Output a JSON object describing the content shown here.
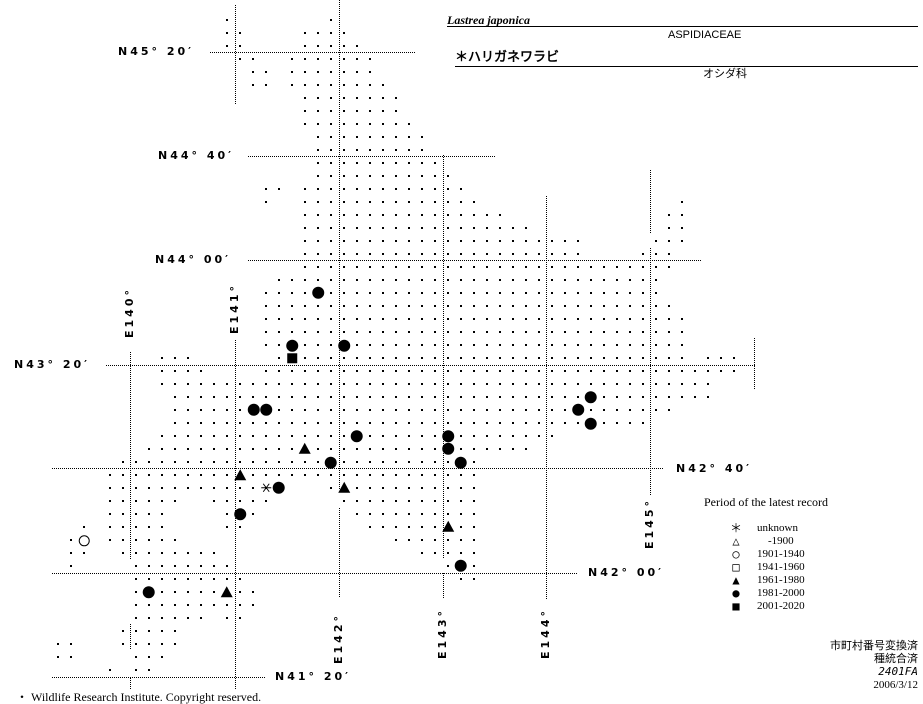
{
  "header": {
    "scientific_name": "Lastrea japonica",
    "family_latin": "ASPIDIACEAE",
    "japanese_name": "＊ハリガネワラビ",
    "family_japanese": "オシダ科"
  },
  "grid_labels": {
    "lat": [
      "N45° 20′",
      "N44° 40′",
      "N44° 00′",
      "N43° 20′",
      "N42° 40′",
      "N42° 00′",
      "N41° 20′"
    ],
    "lon": [
      "E140°",
      "E141°",
      "E142°",
      "E143°",
      "E144°",
      "E145°"
    ]
  },
  "legend": {
    "title": "Period of the latest record",
    "items": [
      {
        "symbol": "asterisk",
        "glyph": "＊",
        "label": "unknown"
      },
      {
        "symbol": "open-triangle",
        "glyph": "△",
        "label": "    -1900"
      },
      {
        "symbol": "open-circle",
        "glyph": "○",
        "label": "1901-1940"
      },
      {
        "symbol": "open-square",
        "glyph": "□",
        "label": "1941-1960"
      },
      {
        "symbol": "filled-triangle",
        "glyph": "▲",
        "label": "1961-1980"
      },
      {
        "symbol": "filled-circle",
        "glyph": "●",
        "label": "1981-2000"
      },
      {
        "symbol": "filled-square",
        "glyph": "■",
        "label": "2001-2020"
      }
    ]
  },
  "records": [
    {
      "lat": 43.79,
      "lon": 141.81,
      "symbol": "filled-circle"
    },
    {
      "lat": 43.45,
      "lon": 141.56,
      "symbol": "filled-circle"
    },
    {
      "lat": 43.45,
      "lon": 142.06,
      "symbol": "filled-circle"
    },
    {
      "lat": 43.37,
      "lon": 141.56,
      "symbol": "filled-square"
    },
    {
      "lat": 43.04,
      "lon": 141.19,
      "symbol": "filled-circle"
    },
    {
      "lat": 43.04,
      "lon": 141.31,
      "symbol": "filled-circle"
    },
    {
      "lat": 42.87,
      "lon": 142.18,
      "symbol": "filled-circle"
    },
    {
      "lat": 42.79,
      "lon": 141.68,
      "symbol": "filled-triangle"
    },
    {
      "lat": 42.7,
      "lon": 141.93,
      "symbol": "filled-circle"
    },
    {
      "lat": 42.87,
      "lon": 143.06,
      "symbol": "filled-circle"
    },
    {
      "lat": 42.79,
      "lon": 143.06,
      "symbol": "filled-circle"
    },
    {
      "lat": 42.7,
      "lon": 143.18,
      "symbol": "filled-circle"
    },
    {
      "lat": 43.04,
      "lon": 144.31,
      "symbol": "filled-circle"
    },
    {
      "lat": 43.12,
      "lon": 144.43,
      "symbol": "filled-circle"
    },
    {
      "lat": 42.95,
      "lon": 144.43,
      "symbol": "filled-circle"
    },
    {
      "lat": 42.62,
      "lon": 141.06,
      "symbol": "filled-triangle"
    },
    {
      "lat": 42.54,
      "lon": 141.31,
      "symbol": "asterisk"
    },
    {
      "lat": 42.54,
      "lon": 141.43,
      "symbol": "filled-circle"
    },
    {
      "lat": 42.54,
      "lon": 142.06,
      "symbol": "filled-triangle"
    },
    {
      "lat": 42.37,
      "lon": 141.06,
      "symbol": "filled-circle"
    },
    {
      "lat": 42.29,
      "lon": 143.06,
      "symbol": "filled-triangle"
    },
    {
      "lat": 42.04,
      "lon": 143.18,
      "symbol": "filled-circle"
    },
    {
      "lat": 42.2,
      "lon": 139.56,
      "symbol": "open-circle"
    },
    {
      "lat": 41.87,
      "lon": 140.18,
      "symbol": "filled-circle"
    },
    {
      "lat": 41.87,
      "lon": 140.93,
      "symbol": "filled-triangle"
    }
  ],
  "footer": {
    "status1": "市町村番号変換済",
    "status2": "種統合済",
    "code": "2401FA",
    "date": "2006/3/12",
    "copyright": "・ Wildlife Research Institute. Copyright reserved."
  }
}
